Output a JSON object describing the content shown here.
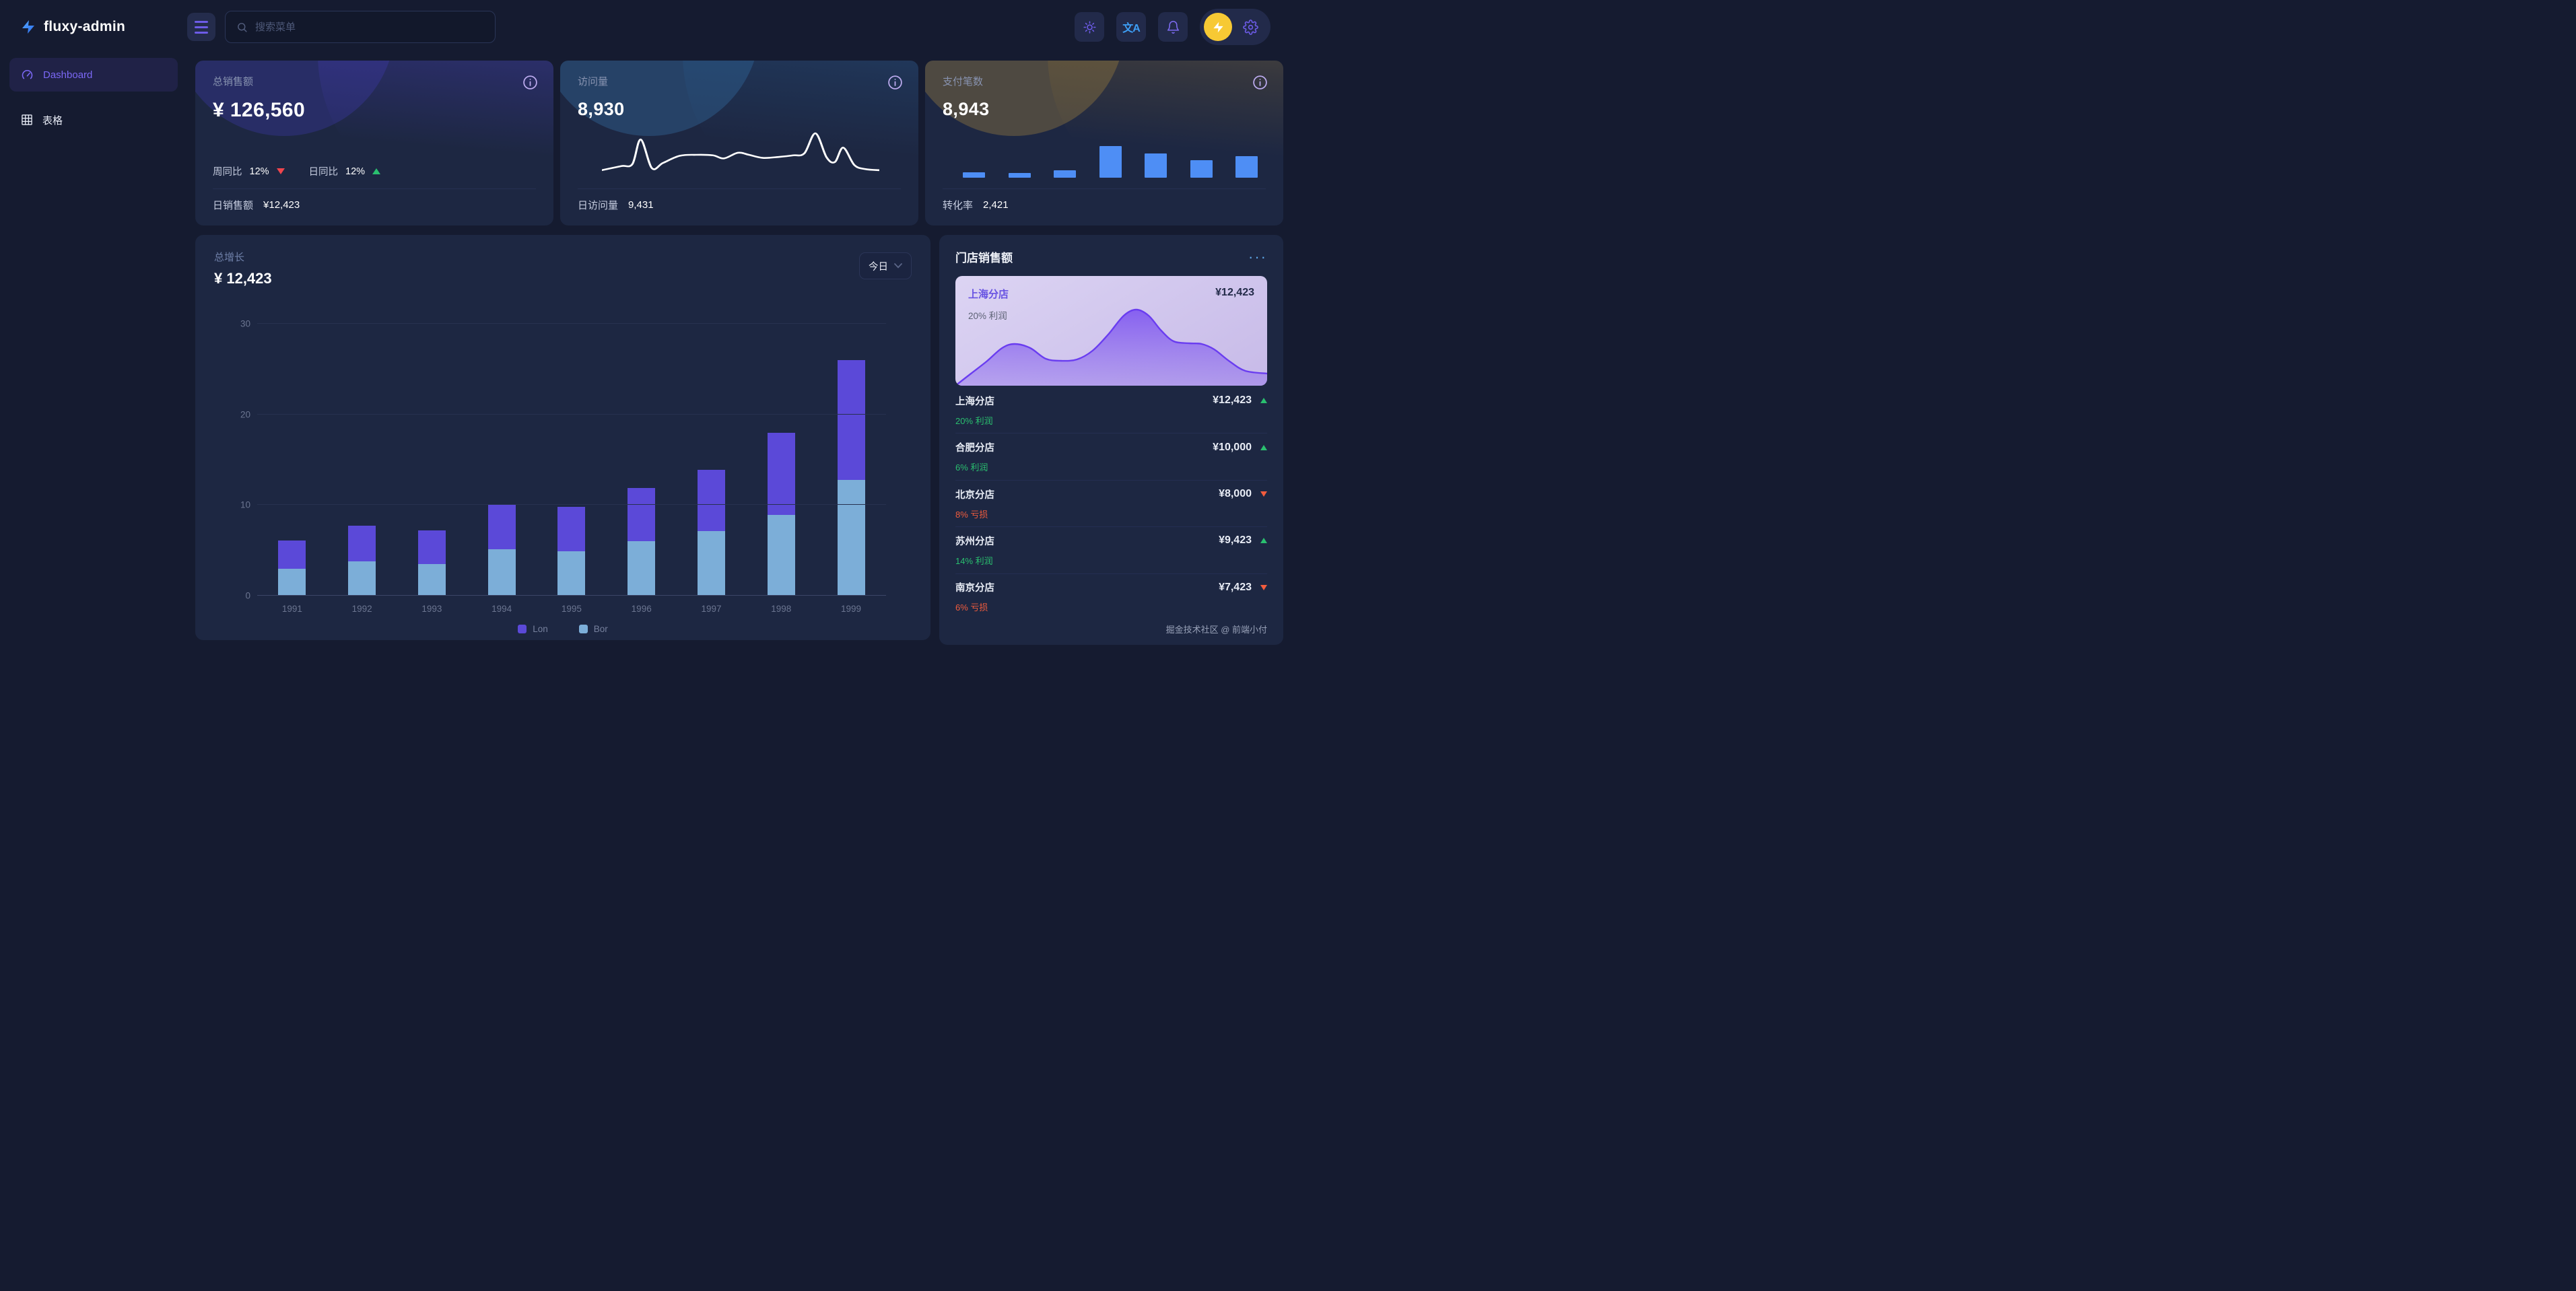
{
  "app": {
    "name": "fluxy-admin"
  },
  "colors": {
    "page_bg": "#151b30",
    "card_bg": "#1d2742",
    "accent_purple": "#6d5ce8",
    "bar_lon": "#5b49d8",
    "bar_bor": "#7caed8",
    "mini_bar_blue": "#4e8ef5",
    "green_up": "#2abf6f",
    "red_down": "#f0454d",
    "loss_orange": "#f25c3d",
    "avatar_yellow": "#f7c934",
    "translate_blue": "#3d9ef5",
    "info_icon": "#bcabef",
    "highlight_from": "#dcd4f3",
    "highlight_to": "#c7bae8",
    "area_purple": "#7c52f0",
    "sparkline": "#ffffff"
  },
  "header": {
    "search_placeholder": "搜索菜单",
    "icons": {
      "menu": "hamburger-icon",
      "search": "magnifier-icon",
      "theme": "sun-icon",
      "language": "translate-icon",
      "notifications": "bell-icon",
      "avatar": "lightning-bolt-icon",
      "settings": "gear-icon"
    },
    "translate_glyph": "文A"
  },
  "sidebar": {
    "items": [
      {
        "label": "Dashboard",
        "icon": "gauge-icon",
        "active": true
      },
      {
        "label": "表格",
        "icon": "table-grid-icon",
        "active": false
      }
    ]
  },
  "stat_cards": [
    {
      "title": "总销售额",
      "value": "¥ 126,560",
      "theme": "violet",
      "metrics": [
        {
          "label": "周同比",
          "value": "12%",
          "trend": "down"
        },
        {
          "label": "日同比",
          "value": "12%",
          "trend": "up"
        }
      ],
      "footer_label": "日销售额",
      "footer_value": "¥12,423"
    },
    {
      "title": "访问量",
      "value": "8,930",
      "theme": "blue",
      "footer_label": "日访问量",
      "footer_value": "9,431"
    },
    {
      "title": "支付笔数",
      "value": "8,943",
      "theme": "gold",
      "footer_label": "转化率",
      "footer_value": "2,421"
    }
  ],
  "growth_chart": {
    "title": "总增长",
    "value": "¥ 12,423",
    "range_selected": "今日"
  },
  "chart_data": [
    {
      "id": "growth",
      "type": "bar",
      "stacked": true,
      "title": "总增长",
      "categories": [
        "1991",
        "1992",
        "1993",
        "1994",
        "1995",
        "1996",
        "1997",
        "1998",
        "1999"
      ],
      "series": [
        {
          "name": "Lon",
          "color": "#5b49d8",
          "values": [
            3.1,
            3.9,
            3.7,
            4.9,
            4.9,
            5.9,
            6.8,
            9.1,
            13.2
          ]
        },
        {
          "name": "Bor",
          "color": "#7caed8",
          "values": [
            3.0,
            3.8,
            3.5,
            5.1,
            4.9,
            6.0,
            7.1,
            8.9,
            12.8
          ]
        }
      ],
      "ylim": [
        0,
        30
      ],
      "yticks": [
        0,
        10,
        20,
        30
      ],
      "grid": true,
      "legend_position": "bottom"
    },
    {
      "id": "visits_sparkline",
      "type": "line",
      "color": "#ffffff",
      "points": [
        [
          0,
          80
        ],
        [
          7,
          72
        ],
        [
          11,
          68
        ],
        [
          14,
          20
        ],
        [
          18,
          76
        ],
        [
          22,
          66
        ],
        [
          28,
          52
        ],
        [
          34,
          50
        ],
        [
          40,
          51
        ],
        [
          44,
          57
        ],
        [
          49,
          46
        ],
        [
          53,
          50
        ],
        [
          58,
          56
        ],
        [
          64,
          54
        ],
        [
          69,
          51
        ],
        [
          73,
          47
        ],
        [
          77,
          8
        ],
        [
          81,
          55
        ],
        [
          84,
          64
        ],
        [
          87,
          36
        ],
        [
          91,
          70
        ],
        [
          95,
          78
        ],
        [
          100,
          80
        ]
      ]
    },
    {
      "id": "payments_minibars",
      "type": "bar",
      "color": "#4e8ef5",
      "values": [
        17,
        15,
        22,
        95,
        72,
        53,
        65
      ]
    },
    {
      "id": "store_area",
      "type": "area",
      "color": "#7c52f0",
      "points": [
        [
          0,
          118
        ],
        [
          5,
          100
        ],
        [
          10,
          82
        ],
        [
          15,
          62
        ],
        [
          19,
          56
        ],
        [
          24,
          62
        ],
        [
          29,
          78
        ],
        [
          34,
          81
        ],
        [
          39,
          79
        ],
        [
          44,
          66
        ],
        [
          49,
          42
        ],
        [
          54,
          14
        ],
        [
          58,
          5
        ],
        [
          62,
          14
        ],
        [
          66,
          36
        ],
        [
          70,
          52
        ],
        [
          75,
          55
        ],
        [
          79,
          56
        ],
        [
          83,
          64
        ],
        [
          88,
          82
        ],
        [
          93,
          96
        ],
        [
          100,
          100
        ]
      ]
    }
  ],
  "stores_panel": {
    "title": "门店销售额",
    "more": "···",
    "highlight": {
      "name": "上海分店",
      "value": "¥12,423",
      "sub": "20% 利润"
    },
    "stores": [
      {
        "name": "上海分店",
        "value": "¥12,423",
        "trend": "up",
        "sub": "20% 利润",
        "status": "profit"
      },
      {
        "name": "合肥分店",
        "value": "¥10,000",
        "trend": "up",
        "sub": "6% 利润",
        "status": "profit"
      },
      {
        "name": "北京分店",
        "value": "¥8,000",
        "trend": "down",
        "sub": "8% 亏损",
        "status": "loss"
      },
      {
        "name": "苏州分店",
        "value": "¥9,423",
        "trend": "up",
        "sub": "14% 利润",
        "status": "profit"
      },
      {
        "name": "南京分店",
        "value": "¥7,423",
        "trend": "down",
        "sub": "6% 亏损",
        "status": "loss"
      }
    ],
    "footer": "掘金技术社区 @ 前端小付"
  }
}
